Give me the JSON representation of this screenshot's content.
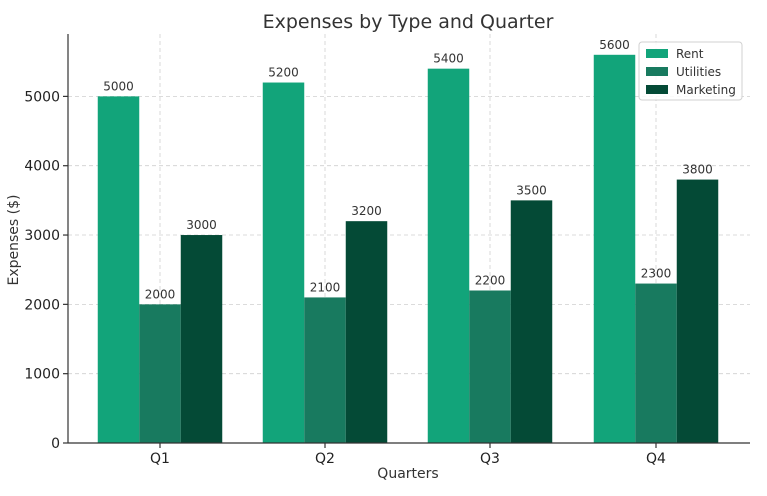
{
  "chart_data": {
    "type": "bar",
    "title": "Expenses by Type and Quarter",
    "xlabel": "Quarters",
    "ylabel": "Expenses ($)",
    "categories": [
      "Q1",
      "Q2",
      "Q3",
      "Q4"
    ],
    "ylim": [
      0,
      5900
    ],
    "yticks": [
      0,
      1000,
      2000,
      3000,
      4000,
      5000
    ],
    "grid": true,
    "legend_position": "top-right",
    "series": [
      {
        "name": "Rent",
        "color": "#12a47a",
        "values": [
          5000,
          5200,
          5400,
          5600
        ]
      },
      {
        "name": "Utilities",
        "color": "#187a5f",
        "values": [
          2000,
          2100,
          2200,
          2300
        ]
      },
      {
        "name": "Marketing",
        "color": "#044a36",
        "values": [
          3000,
          3200,
          3500,
          3800
        ]
      }
    ]
  }
}
